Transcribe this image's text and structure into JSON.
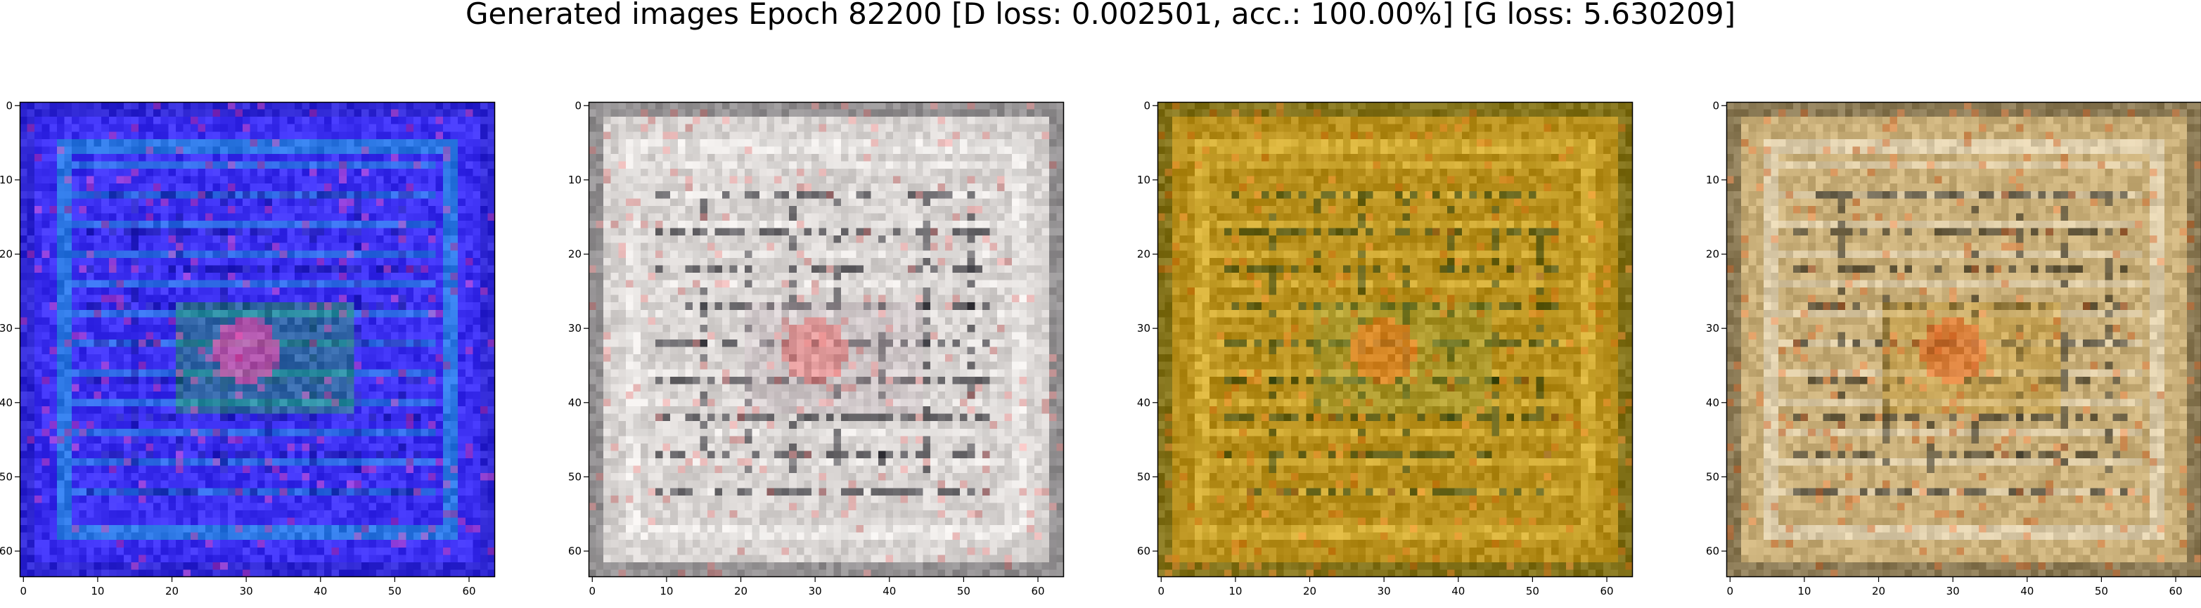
{
  "figure": {
    "title": "Generated images Epoch 82200 [D loss: 0.002501, acc.: 100.00%] [G loss: 5.630209]"
  },
  "chart_data": [
    {
      "type": "heatmap",
      "title": "",
      "xlabel": "",
      "ylabel": "",
      "xlim": [
        -0.5,
        63.5
      ],
      "ylim": [
        63.5,
        -0.5
      ],
      "xticks": [
        0,
        10,
        20,
        30,
        40,
        50,
        60
      ],
      "yticks": [
        0,
        10,
        20,
        30,
        40,
        50,
        60
      ],
      "grid": false,
      "palette": {
        "base": "#3b2ff0",
        "stripe": "#1fb0d8",
        "accent": "#22cc22",
        "highlight": "#ff44aa",
        "dark": "#1a1aa0"
      },
      "seed": 11
    },
    {
      "type": "heatmap",
      "title": "",
      "xlabel": "",
      "ylabel": "",
      "xlim": [
        -0.5,
        63.5
      ],
      "ylim": [
        63.5,
        -0.5
      ],
      "xticks": [
        0,
        10,
        20,
        30,
        40,
        50,
        60
      ],
      "yticks": [
        0,
        10,
        20,
        30,
        40,
        50,
        60
      ],
      "grid": false,
      "palette": {
        "base": "#d8d4d2",
        "stripe": "#f4f2f0",
        "accent": "#b8a8b0",
        "highlight": "#e87878",
        "dark": "#101018"
      },
      "seed": 23
    },
    {
      "type": "heatmap",
      "title": "",
      "xlabel": "",
      "ylabel": "",
      "xlim": [
        -0.5,
        63.5
      ],
      "ylim": [
        63.5,
        -0.5
      ],
      "xticks": [
        0,
        10,
        20,
        30,
        40,
        50,
        60
      ],
      "yticks": [
        0,
        10,
        20,
        30,
        40,
        50,
        60
      ],
      "grid": false,
      "palette": {
        "base": "#b8901c",
        "stripe": "#e6c248",
        "accent": "#8a9a3a",
        "highlight": "#f07a20",
        "dark": "#1e3a14"
      },
      "seed": 37
    },
    {
      "type": "heatmap",
      "title": "",
      "xlabel": "",
      "ylabel": "",
      "xlim": [
        -0.5,
        63.5
      ],
      "ylim": [
        63.5,
        -0.5
      ],
      "xticks": [
        0,
        10,
        20,
        30,
        40,
        50,
        60
      ],
      "yticks": [
        0,
        10,
        20,
        30,
        40,
        50,
        60
      ],
      "grid": false,
      "palette": {
        "base": "#c8ae78",
        "stripe": "#ece4d2",
        "accent": "#c8961e",
        "highlight": "#e86a2a",
        "dark": "#1a1a14"
      },
      "seed": 51
    }
  ]
}
